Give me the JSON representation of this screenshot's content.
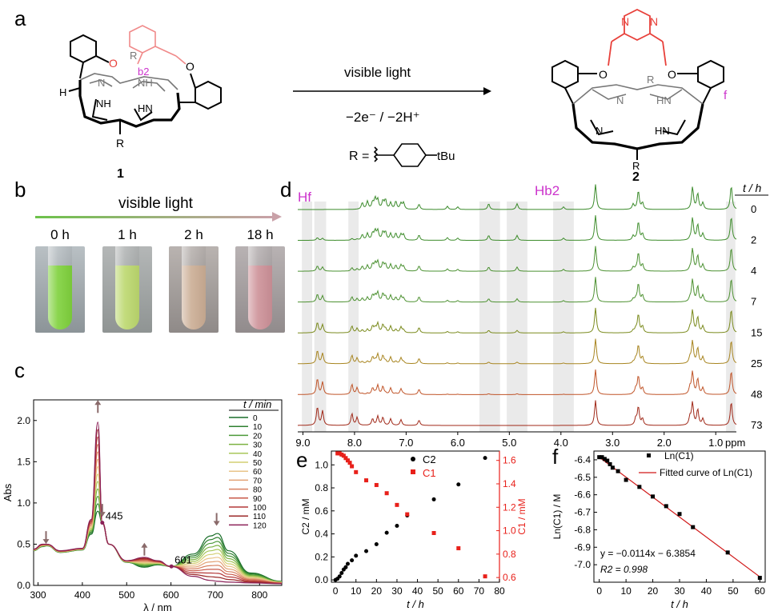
{
  "panels": {
    "a": {
      "label": "a",
      "arrow_top": "visible light",
      "arrow_bottom": "−2e⁻ / −2H⁺",
      "r_group": "R =",
      "r_group_sub": "tBu",
      "compound1": "1",
      "compound2": "2",
      "atom_labels": {
        "R": "R",
        "NH": "NH",
        "HN": "HN",
        "N": "N",
        "O": "O",
        "H": "H",
        "b2": "b2",
        "f": "f"
      },
      "colors": {
        "pyrazine": "#e8403a",
        "pink": "#f08a8a",
        "magenta": "#cc33cc"
      }
    },
    "b": {
      "label": "b",
      "title": "visible light",
      "times": [
        "0 h",
        "1 h",
        "2 h",
        "18 h"
      ],
      "colors": [
        "#7fd13c",
        "#b8d66a",
        "#c8a88a",
        "#c98f95"
      ]
    },
    "c": {
      "label": "c",
      "xlabel": "λ / nm",
      "ylabel": "Abs",
      "legend_title": "t / min",
      "annot_445": "445",
      "annot_601": "601"
    },
    "d": {
      "label": "d",
      "hf": "Hf",
      "hb2": "Hb2",
      "time_header": "t / h",
      "times": [
        "0",
        "2",
        "4",
        "7",
        "15",
        "25",
        "48",
        "73"
      ],
      "xticks": [
        "9.0",
        "8.0",
        "7.0",
        "6.0",
        "5.0",
        "4.0",
        "3.0",
        "2.0",
        "1.0"
      ],
      "unit": "ppm",
      "colors": [
        "#3a8a2a",
        "#3e8d2c",
        "#4a9030",
        "#4d9131",
        "#7a8a1c",
        "#a88520",
        "#c05428",
        "#a02818"
      ]
    },
    "e": {
      "label": "e",
      "xlabel": "t / h",
      "ylabel_left": "C2 / mM",
      "ylabel_right": "C1 / mM",
      "legend": [
        "C2",
        "C1"
      ]
    },
    "f": {
      "label": "f",
      "xlabel": "t / h",
      "ylabel": "Ln(C1) / M",
      "legend": [
        "Ln(C1)",
        "Fitted curve of Ln(C1)"
      ],
      "equation": "y = −0.0114x − 6.3854",
      "r2": "R2 = 0.998"
    }
  },
  "chart_data": [
    {
      "id": "uvvis",
      "type": "line",
      "title": "",
      "xlabel": "λ / nm",
      "ylabel": "Abs",
      "xlim": [
        290,
        850
      ],
      "ylim": [
        0,
        2.25
      ],
      "xticks": [
        300,
        400,
        500,
        600,
        700,
        800
      ],
      "yticks": [
        0.0,
        0.5,
        1.0,
        1.5,
        2.0
      ],
      "ytick_labels": [
        "0.0",
        "0.5",
        "1.0",
        "1.5",
        "2.0"
      ],
      "legend_title": "t / min",
      "series_names": [
        "0",
        "10",
        "20",
        "30",
        "40",
        "50",
        "60",
        "70",
        "80",
        "90",
        "100",
        "110",
        "120"
      ],
      "series_colors": [
        "#1a6f2a",
        "#2f8030",
        "#4d9a3a",
        "#7bb242",
        "#a8c75a",
        "#d4cf72",
        "#e9c489",
        "#e3a275",
        "#d77f5f",
        "#c85848",
        "#b43838",
        "#9c2a2a",
        "#8b2158"
      ],
      "anchor_x": [
        290,
        310,
        320,
        350,
        400,
        420,
        435,
        445,
        460,
        500,
        540,
        570,
        600,
        650,
        690,
        705,
        730,
        780,
        850
      ],
      "start": [
        0.42,
        0.47,
        0.48,
        0.4,
        0.43,
        0.62,
        0.9,
        0.76,
        0.5,
        0.28,
        0.22,
        0.25,
        0.23,
        0.38,
        0.6,
        0.63,
        0.42,
        0.15,
        0.05
      ],
      "end": [
        0.44,
        0.5,
        0.5,
        0.42,
        0.45,
        0.8,
        1.98,
        0.76,
        0.5,
        0.3,
        0.34,
        0.3,
        0.23,
        0.11,
        0.06,
        0.05,
        0.04,
        0.03,
        0.02
      ],
      "annotations": [
        {
          "text": "445",
          "x": 445,
          "y": 0.76
        },
        {
          "text": "601",
          "x": 601,
          "y": 0.23
        }
      ],
      "arrows": [
        {
          "x": 318,
          "dir": "down"
        },
        {
          "x": 435,
          "dir": "up"
        },
        {
          "x": 445,
          "dir": "down"
        },
        {
          "x": 540,
          "dir": "up"
        },
        {
          "x": 703,
          "dir": "down"
        }
      ]
    },
    {
      "id": "nmr",
      "type": "line",
      "xlabel": "ppm",
      "xlim": [
        9.1,
        0.6
      ],
      "xticks": [
        9.0,
        8.0,
        7.0,
        6.0,
        5.0,
        4.0,
        3.0,
        2.0,
        1.0
      ],
      "series_names": [
        "0",
        "2",
        "4",
        "7",
        "15",
        "25",
        "48",
        "73"
      ],
      "peaks_common": [
        [
          3.33,
          0.95
        ],
        [
          2.5,
          0.7
        ],
        [
          2.42,
          0.25
        ],
        [
          1.45,
          0.85
        ],
        [
          1.35,
          0.6
        ],
        [
          1.25,
          0.25
        ],
        [
          7.55,
          0.35
        ],
        [
          7.45,
          0.3
        ],
        [
          7.65,
          0.25
        ],
        [
          7.3,
          0.25
        ],
        [
          7.1,
          0.22
        ],
        [
          6.75,
          0.2
        ],
        [
          0.7,
          0.9
        ]
      ],
      "peaks_reactant": [
        [
          7.85,
          0.25
        ],
        [
          7.75,
          0.3
        ],
        [
          7.6,
          0.4
        ],
        [
          7.4,
          0.35
        ],
        [
          7.2,
          0.3
        ],
        [
          7.05,
          0.25
        ],
        [
          6.2,
          0.12
        ],
        [
          6.0,
          0.1
        ],
        [
          5.4,
          0.22
        ],
        [
          4.85,
          0.22
        ],
        [
          3.95,
          0.1
        ],
        [
          2.6,
          0.2
        ]
      ],
      "peaks_product": [
        [
          8.72,
          0.7
        ],
        [
          8.62,
          0.55
        ],
        [
          8.05,
          0.45
        ],
        [
          7.95,
          0.3
        ],
        [
          2.55,
          0.25
        ],
        [
          1.5,
          0.3
        ]
      ],
      "shaded_bands": [
        [
          9.02,
          8.82
        ],
        [
          8.78,
          8.55
        ],
        [
          8.12,
          7.92
        ],
        [
          5.58,
          5.18
        ],
        [
          5.05,
          4.65
        ],
        [
          4.15,
          3.75
        ],
        [
          0.8,
          0.62
        ]
      ]
    },
    {
      "id": "kinetics",
      "type": "scatter",
      "xlabel": "t / h",
      "xlim": [
        -2,
        80
      ],
      "xticks": [
        0,
        10,
        20,
        30,
        40,
        50,
        60,
        70,
        80
      ],
      "ylim_left": [
        -0.02,
        1.12
      ],
      "yticks_left": [
        0.0,
        0.2,
        0.4,
        0.6,
        0.8,
        1.0
      ],
      "ytick_labels_left": [
        "0.0",
        "0.2",
        "0.4",
        "0.6",
        "0.8",
        "1.0"
      ],
      "ylim_right": [
        0.56,
        1.68
      ],
      "yticks_right": [
        0.6,
        0.8,
        1.0,
        1.2,
        1.4,
        1.6
      ],
      "ytick_labels_right": [
        "0.6",
        "0.8",
        "1.0",
        "1.2",
        "1.4",
        "1.6"
      ],
      "series": [
        {
          "name": "C2",
          "axis": "left",
          "color": "#000000",
          "x": [
            0,
            1,
            2,
            3,
            4,
            5,
            6,
            8,
            10,
            15,
            20,
            25,
            30,
            35,
            48,
            60,
            73
          ],
          "values": [
            0.0,
            0.01,
            0.03,
            0.06,
            0.09,
            0.11,
            0.14,
            0.17,
            0.21,
            0.25,
            0.31,
            0.41,
            0.47,
            0.56,
            0.7,
            0.83,
            1.06
          ]
        },
        {
          "name": "C1",
          "axis": "right",
          "color": "#e8201a",
          "x": [
            1,
            2,
            3,
            4,
            5,
            6,
            7,
            8,
            10,
            15,
            20,
            25,
            30,
            35,
            48,
            60,
            73
          ],
          "values": [
            1.66,
            1.66,
            1.65,
            1.64,
            1.62,
            1.6,
            1.58,
            1.55,
            1.5,
            1.43,
            1.39,
            1.32,
            1.22,
            1.14,
            0.98,
            0.85,
            0.61
          ]
        }
      ]
    },
    {
      "id": "lnfit",
      "type": "scatter",
      "xlabel": "t / h",
      "ylabel": "Ln(C1) / M",
      "xlim": [
        -2,
        62
      ],
      "xticks": [
        0,
        10,
        20,
        30,
        40,
        50,
        60
      ],
      "ylim": [
        -7.1,
        -6.35
      ],
      "yticks": [
        -6.4,
        -6.5,
        -6.6,
        -6.7,
        -6.8,
        -6.9,
        -7.0
      ],
      "ytick_labels": [
        "-6.4",
        "-6.5",
        "-6.6",
        "-6.7",
        "-6.8",
        "-6.9",
        "-7.0"
      ],
      "series": [
        {
          "name": "Ln(C1)",
          "color": "#000000",
          "x": [
            0,
            1,
            2,
            3,
            4,
            5,
            7,
            10,
            15,
            20,
            25,
            30,
            35,
            48,
            60
          ],
          "values": [
            -6.385,
            -6.385,
            -6.395,
            -6.405,
            -6.425,
            -6.445,
            -6.465,
            -6.515,
            -6.555,
            -6.61,
            -6.665,
            -6.71,
            -6.785,
            -6.93,
            -7.075
          ]
        }
      ],
      "fit": {
        "slope": -0.0114,
        "intercept": -6.3854,
        "color": "#d01818"
      }
    }
  ]
}
